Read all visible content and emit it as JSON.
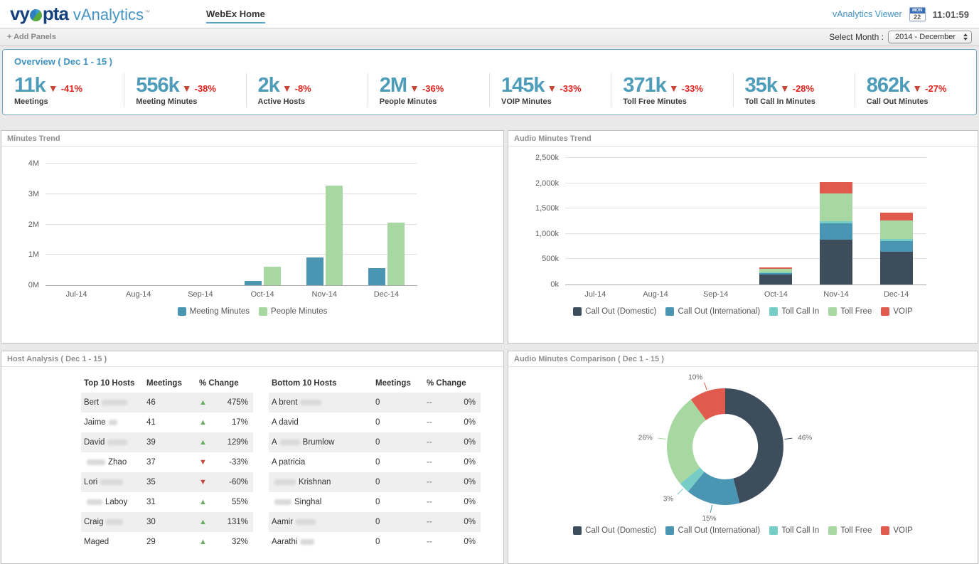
{
  "header": {
    "logo_part1": "vy",
    "logo_part2": "pta",
    "logo_product": "vAnalytics",
    "logo_tm": "™",
    "nav_tab": "WebEx Home",
    "viewer_link": "vAnalytics Viewer",
    "calendar_dow": "MON",
    "calendar_day": "22",
    "time": "11:01:59"
  },
  "toolbar": {
    "add_panels": "+ Add Panels",
    "month_label": "Select Month :",
    "month_value": "2014 - December"
  },
  "overview": {
    "title": "Overview ( Dec 1 - 15 )",
    "kpis": [
      {
        "value": "11k",
        "delta": "-41%",
        "label": "Meetings"
      },
      {
        "value": "556k",
        "delta": "-38%",
        "label": "Meeting Minutes"
      },
      {
        "value": "2k",
        "delta": "-8%",
        "label": "Active Hosts"
      },
      {
        "value": "2M",
        "delta": "-36%",
        "label": "People Minutes"
      },
      {
        "value": "145k",
        "delta": "-33%",
        "label": "VOIP Minutes"
      },
      {
        "value": "371k",
        "delta": "-33%",
        "label": "Toll Free Minutes"
      },
      {
        "value": "35k",
        "delta": "-28%",
        "label": "Toll Call In Minutes"
      },
      {
        "value": "862k",
        "delta": "-27%",
        "label": "Call Out Minutes"
      }
    ]
  },
  "chart_data": [
    {
      "type": "bar",
      "title": "Minutes Trend",
      "categories": [
        "Jul-14",
        "Aug-14",
        "Sep-14",
        "Oct-14",
        "Nov-14",
        "Dec-14"
      ],
      "ylim": [
        0,
        4
      ],
      "yticks": [
        "0M",
        "1M",
        "2M",
        "3M",
        "4M"
      ],
      "legend_position": "bottom",
      "grid": true,
      "series": [
        {
          "name": "Meeting Minutes",
          "color": "#4a95b1",
          "values": [
            0,
            0,
            0,
            0.15,
            0.9,
            0.55
          ]
        },
        {
          "name": "People Minutes",
          "color": "#a8d8a1",
          "values": [
            0,
            0,
            0,
            0.6,
            3.25,
            2.05
          ]
        }
      ]
    },
    {
      "type": "stacked-bar",
      "title": "Audio Minutes Trend",
      "categories": [
        "Jul-14",
        "Aug-14",
        "Sep-14",
        "Oct-14",
        "Nov-14",
        "Dec-14"
      ],
      "ylim": [
        0,
        2500
      ],
      "yticks": [
        "0k",
        "500k",
        "1,000k",
        "1,500k",
        "2,000k",
        "2,500k"
      ],
      "legend_position": "bottom",
      "grid": true,
      "series": [
        {
          "name": "Call Out (Domestic)",
          "color": "#3d4d5c",
          "values": [
            0,
            0,
            0,
            190,
            880,
            640
          ]
        },
        {
          "name": "Call Out (International)",
          "color": "#4a95b1",
          "values": [
            0,
            0,
            0,
            25,
            320,
            210
          ]
        },
        {
          "name": "Toll Call In",
          "color": "#76cdc8",
          "values": [
            0,
            0,
            0,
            10,
            40,
            40
          ]
        },
        {
          "name": "Toll Free",
          "color": "#a8d8a1",
          "values": [
            0,
            0,
            0,
            65,
            540,
            370
          ]
        },
        {
          "name": "VOIP",
          "color": "#e05a4e",
          "values": [
            0,
            0,
            0,
            30,
            220,
            150
          ]
        }
      ]
    },
    {
      "type": "donut",
      "title": "Audio Minutes Comparison ( Dec 1 - 15 )",
      "labels": [
        "Call Out (Domestic)",
        "Call Out (International)",
        "Toll Call In",
        "Toll Free",
        "VOIP"
      ],
      "values": [
        46,
        15,
        3,
        26,
        10
      ],
      "unit": "%",
      "colors": [
        "#3d4d5c",
        "#4a95b1",
        "#76cdc8",
        "#a8d8a1",
        "#e05a4e"
      ],
      "legend_position": "bottom"
    }
  ],
  "host_analysis": {
    "title": "Host Analysis ( Dec 1 - 15 )",
    "tables": [
      {
        "headers": [
          "Top 10 Hosts",
          "Meetings",
          "% Change"
        ],
        "rows": [
          {
            "parts": [
              {
                "text": "Bert"
              },
              {
                "blur": 36
              }
            ],
            "meetings": "46",
            "dir": "up",
            "change": "475%"
          },
          {
            "parts": [
              {
                "text": "Jaime"
              },
              {
                "blur": 12
              }
            ],
            "meetings": "41",
            "dir": "up",
            "change": "17%"
          },
          {
            "parts": [
              {
                "text": "David"
              },
              {
                "blur": 28
              }
            ],
            "meetings": "39",
            "dir": "up",
            "change": "129%"
          },
          {
            "parts": [
              {
                "blur": 26
              },
              {
                "text": "Zhao"
              }
            ],
            "meetings": "37",
            "dir": "down",
            "change": "-33%"
          },
          {
            "parts": [
              {
                "text": "Lori"
              },
              {
                "blur": 32
              }
            ],
            "meetings": "35",
            "dir": "down",
            "change": "-60%"
          },
          {
            "parts": [
              {
                "blur": 22
              },
              {
                "text": "Laboy"
              }
            ],
            "meetings": "31",
            "dir": "up",
            "change": "55%"
          },
          {
            "parts": [
              {
                "text": "Craig"
              },
              {
                "blur": 24
              }
            ],
            "meetings": "30",
            "dir": "up",
            "change": "131%"
          },
          {
            "parts": [
              {
                "text": "Maged"
              }
            ],
            "meetings": "29",
            "dir": "up",
            "change": "32%"
          }
        ]
      },
      {
        "headers": [
          "Bottom 10 Hosts",
          "Meetings",
          "% Change"
        ],
        "rows": [
          {
            "parts": [
              {
                "text": "A brent"
              },
              {
                "blur": 30
              }
            ],
            "meetings": "0",
            "dir": "flat",
            "change": "0%"
          },
          {
            "parts": [
              {
                "text": "A david"
              }
            ],
            "meetings": "0",
            "dir": "flat",
            "change": "0%"
          },
          {
            "parts": [
              {
                "text": "A"
              },
              {
                "blur": 28
              },
              {
                "text": "Brumlow"
              }
            ],
            "meetings": "0",
            "dir": "flat",
            "change": "0%"
          },
          {
            "parts": [
              {
                "text": "A patricia"
              }
            ],
            "meetings": "0",
            "dir": "flat",
            "change": "0%"
          },
          {
            "parts": [
              {
                "blur": 30
              },
              {
                "text": "Krishnan"
              }
            ],
            "meetings": "0",
            "dir": "flat",
            "change": "0%"
          },
          {
            "parts": [
              {
                "blur": 24
              },
              {
                "text": "Singhal"
              }
            ],
            "meetings": "0",
            "dir": "flat",
            "change": "0%"
          },
          {
            "parts": [
              {
                "text": "Aamir"
              },
              {
                "blur": 28
              }
            ],
            "meetings": "0",
            "dir": "flat",
            "change": "0%"
          },
          {
            "parts": [
              {
                "text": "Aarathi"
              },
              {
                "blur": 20
              }
            ],
            "meetings": "0",
            "dir": "flat",
            "change": "0%"
          }
        ]
      }
    ]
  },
  "icons": {
    "trend_down": "▼",
    "trend_up": "▲",
    "no_change": "--"
  }
}
